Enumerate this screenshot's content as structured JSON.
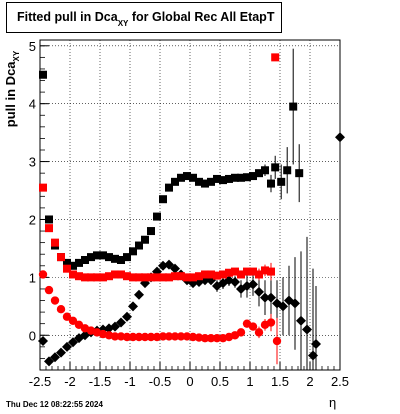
{
  "title": {
    "main": "Fitted pull in Dca",
    "sub": "XY",
    "rest": " for Global Rec All EtapT"
  },
  "ylabel": {
    "main": "pull in Dca",
    "sub": "XY"
  },
  "xlabel": "η",
  "footer": "Thu Dec 12 08:22:55 2024",
  "colors": {
    "black_series": "#000000",
    "red_series": "#ff0000",
    "grid": "#000000"
  },
  "chart_data": {
    "type": "scatter",
    "xlim": [
      -2.5,
      2.5
    ],
    "ylim": [
      -0.6,
      5.1
    ],
    "xticks": [
      "-2.5",
      "-2",
      "-1.5",
      "-1",
      "-0.5",
      "0",
      "0.5",
      "1",
      "1.5",
      "2",
      "2.5"
    ],
    "yticks": [
      "0",
      "1",
      "2",
      "3",
      "4",
      "5"
    ],
    "grid": true,
    "series": [
      {
        "marker": "square",
        "color": "#000000",
        "x": [
          -2.45,
          -2.35,
          -2.25,
          -2.15,
          -2.05,
          -1.95,
          -1.85,
          -1.75,
          -1.65,
          -1.55,
          -1.45,
          -1.35,
          -1.25,
          -1.15,
          -1.05,
          -0.95,
          -0.85,
          -0.75,
          -0.65,
          -0.55,
          -0.45,
          -0.35,
          -0.25,
          -0.15,
          -0.05,
          0.05,
          0.15,
          0.25,
          0.35,
          0.45,
          0.55,
          0.65,
          0.75,
          0.85,
          0.95,
          1.05,
          1.15,
          1.25,
          1.35,
          1.42,
          1.52,
          1.62,
          1.72,
          1.82
        ],
        "y": [
          4.5,
          2.0,
          1.55,
          1.35,
          1.25,
          1.2,
          1.25,
          1.3,
          1.35,
          1.38,
          1.38,
          1.35,
          1.32,
          1.3,
          1.35,
          1.45,
          1.55,
          1.65,
          1.8,
          2.05,
          2.35,
          2.55,
          2.65,
          2.72,
          2.75,
          2.72,
          2.65,
          2.62,
          2.65,
          2.7,
          2.68,
          2.7,
          2.72,
          2.72,
          2.73,
          2.75,
          2.8,
          2.85,
          2.62,
          2.9,
          2.65,
          2.85,
          3.95,
          2.8
        ],
        "err": [
          0,
          0,
          0,
          0,
          0,
          0,
          0,
          0,
          0,
          0,
          0,
          0,
          0,
          0,
          0,
          0,
          0,
          0,
          0,
          0,
          0,
          0,
          0,
          0,
          0,
          0,
          0,
          0,
          0,
          0,
          0,
          0,
          0,
          0,
          0,
          0,
          0,
          0.1,
          0.15,
          0.2,
          0.3,
          0.4,
          1.0,
          0.5
        ]
      },
      {
        "marker": "diamond",
        "color": "#000000",
        "x": [
          -2.45,
          -2.35,
          -2.25,
          -2.15,
          -2.05,
          -1.95,
          -1.85,
          -1.75,
          -1.65,
          -1.55,
          -1.45,
          -1.35,
          -1.25,
          -1.15,
          -1.05,
          -0.95,
          -0.85,
          -0.75,
          -0.65,
          -0.55,
          -0.45,
          -0.35,
          -0.25,
          -0.15,
          -0.05,
          0.05,
          0.15,
          0.25,
          0.35,
          0.45,
          0.55,
          0.65,
          0.75,
          0.85,
          0.95,
          1.05,
          1.15,
          1.25,
          1.35,
          1.45,
          1.55,
          1.65,
          1.75,
          1.85,
          1.95,
          2.05,
          2.1,
          2.5
        ],
        "y": [
          -0.1,
          -0.45,
          -0.38,
          -0.3,
          -0.2,
          -0.12,
          -0.05,
          0.0,
          0.05,
          0.08,
          0.1,
          0.12,
          0.15,
          0.22,
          0.32,
          0.5,
          0.7,
          0.9,
          1.0,
          1.1,
          1.2,
          1.22,
          1.15,
          1.05,
          0.95,
          0.9,
          0.92,
          0.95,
          0.95,
          0.85,
          0.9,
          0.95,
          0.92,
          0.8,
          0.85,
          0.88,
          0.75,
          0.65,
          0.65,
          0.55,
          0.5,
          0.6,
          0.55,
          0.25,
          0.1,
          -0.35,
          -0.15,
          3.42
        ],
        "err": [
          0,
          0,
          0,
          0,
          0,
          0,
          0,
          0,
          0,
          0,
          0,
          0,
          0,
          0,
          0,
          0,
          0,
          0,
          0,
          0,
          0,
          0,
          0,
          0,
          0,
          0,
          0,
          0,
          0,
          0.1,
          0.1,
          0.1,
          0.1,
          0.15,
          0.2,
          0.2,
          0.25,
          0.3,
          0.3,
          0.4,
          0.5,
          0.6,
          0.8,
          1.2,
          1.6,
          1.5,
          1.0,
          0.0
        ]
      },
      {
        "marker": "square",
        "color": "#ff0000",
        "x": [
          -2.45,
          -2.35,
          -2.25,
          -2.15,
          -2.05,
          -1.95,
          -1.85,
          -1.75,
          -1.65,
          -1.55,
          -1.45,
          -1.35,
          -1.25,
          -1.15,
          -1.05,
          -0.95,
          -0.85,
          -0.75,
          -0.65,
          -0.55,
          -0.45,
          -0.35,
          -0.25,
          -0.15,
          -0.05,
          0.05,
          0.15,
          0.25,
          0.35,
          0.45,
          0.55,
          0.65,
          0.75,
          0.85,
          0.95,
          1.05,
          1.15,
          1.25,
          1.35,
          1.42
        ],
        "y": [
          2.55,
          1.85,
          1.6,
          1.35,
          1.15,
          1.05,
          1.02,
          1.0,
          1.0,
          1.0,
          1.0,
          1.02,
          1.05,
          1.05,
          1.02,
          1.0,
          1.0,
          1.0,
          1.0,
          1.0,
          1.0,
          1.0,
          1.02,
          1.02,
          1.0,
          1.0,
          1.02,
          1.05,
          1.05,
          1.03,
          1.05,
          1.08,
          1.1,
          1.05,
          1.1,
          1.1,
          1.05,
          1.12,
          1.1,
          4.8
        ],
        "err": [
          0,
          0,
          0,
          0,
          0,
          0,
          0,
          0,
          0,
          0,
          0,
          0,
          0,
          0,
          0,
          0,
          0,
          0,
          0,
          0,
          0,
          0,
          0,
          0,
          0,
          0,
          0,
          0,
          0,
          0,
          0,
          0,
          0,
          0,
          0,
          0,
          0.1,
          0.1,
          0.15,
          0.0
        ]
      },
      {
        "marker": "circle",
        "color": "#ff0000",
        "x": [
          -2.45,
          -2.35,
          -2.25,
          -2.15,
          -2.05,
          -1.95,
          -1.85,
          -1.75,
          -1.65,
          -1.55,
          -1.45,
          -1.35,
          -1.25,
          -1.15,
          -1.05,
          -0.95,
          -0.85,
          -0.75,
          -0.65,
          -0.55,
          -0.45,
          -0.35,
          -0.25,
          -0.15,
          -0.05,
          0.05,
          0.15,
          0.25,
          0.35,
          0.45,
          0.55,
          0.65,
          0.75,
          0.85,
          0.95,
          1.05,
          1.15,
          1.25,
          1.35,
          1.45
        ],
        "y": [
          1.05,
          0.78,
          0.6,
          0.45,
          0.32,
          0.25,
          0.18,
          0.12,
          0.08,
          0.05,
          0.02,
          0.0,
          -0.02,
          -0.02,
          -0.03,
          -0.03,
          -0.03,
          -0.03,
          -0.03,
          -0.03,
          -0.02,
          -0.02,
          -0.02,
          -0.02,
          -0.02,
          -0.03,
          -0.04,
          -0.05,
          -0.05,
          -0.05,
          -0.05,
          -0.03,
          0.0,
          0.05,
          0.2,
          0.15,
          0.05,
          0.18,
          0.22,
          -0.1
        ],
        "err": [
          0,
          0,
          0,
          0,
          0,
          0,
          0,
          0,
          0,
          0,
          0,
          0,
          0,
          0,
          0,
          0,
          0,
          0,
          0,
          0,
          0,
          0,
          0,
          0,
          0,
          0,
          0,
          0,
          0,
          0,
          0,
          0,
          0,
          0,
          0,
          0.05,
          0.1,
          0.1,
          0.15,
          0.4
        ]
      }
    ]
  }
}
